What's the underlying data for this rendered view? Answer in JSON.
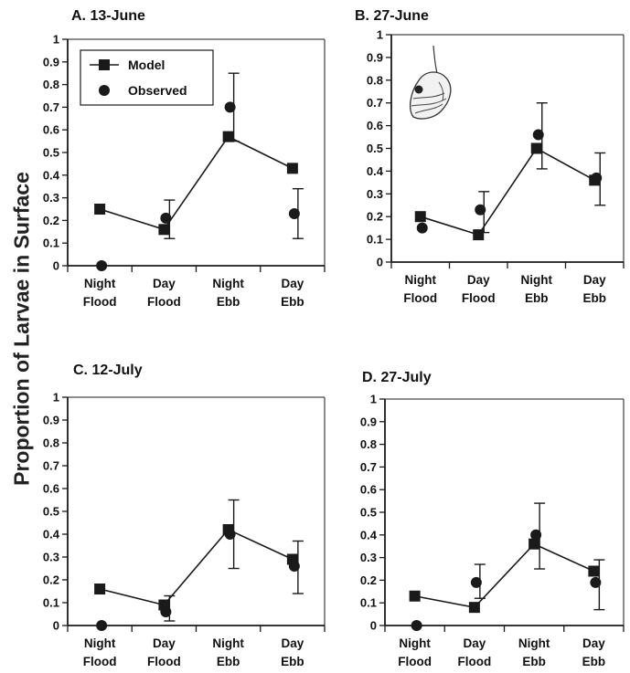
{
  "figure": {
    "ylabel": "Proportion of Larvae in Surface"
  },
  "chart_data": [
    {
      "type": "line",
      "title": "A. 13-June",
      "categories": [
        [
          "Night",
          "Flood"
        ],
        [
          "Day",
          "Flood"
        ],
        [
          "Night",
          "Ebb"
        ],
        [
          "Day",
          "Ebb"
        ]
      ],
      "ylim": [
        0,
        1
      ],
      "yticks": [
        "0",
        "0.1",
        "0.2",
        "0.3",
        "0.4",
        "0.5",
        "0.6",
        "0.7",
        "0.8",
        "0.9",
        "1"
      ],
      "legend": {
        "placement": "top-left",
        "entries": [
          "Model",
          "Observed"
        ]
      },
      "series": [
        {
          "name": "Model",
          "marker": "square",
          "line": true,
          "values": [
            0.25,
            0.16,
            0.57,
            0.43
          ]
        },
        {
          "name": "Observed",
          "marker": "circle",
          "line": false,
          "values": [
            0.0,
            0.21,
            0.7,
            0.23
          ],
          "error_low": [
            null,
            0.12,
            0.55,
            0.12
          ],
          "error_high": [
            null,
            0.29,
            0.85,
            0.34
          ]
        }
      ]
    },
    {
      "type": "line",
      "title": "B. 27-June",
      "categories": [
        [
          "Night",
          "Flood"
        ],
        [
          "Day",
          "Flood"
        ],
        [
          "Night",
          "Ebb"
        ],
        [
          "Day",
          "Ebb"
        ]
      ],
      "ylim": [
        0,
        1
      ],
      "yticks": [
        "0",
        "0.1",
        "0.2",
        "0.3",
        "0.4",
        "0.5",
        "0.6",
        "0.7",
        "0.8",
        "0.9",
        "1"
      ],
      "has_illustration": true,
      "series": [
        {
          "name": "Model",
          "marker": "square",
          "line": true,
          "values": [
            0.2,
            0.12,
            0.5,
            0.36
          ]
        },
        {
          "name": "Observed",
          "marker": "circle",
          "line": false,
          "values": [
            0.15,
            0.23,
            0.56,
            0.37
          ],
          "error_low": [
            null,
            0.13,
            0.41,
            0.25
          ],
          "error_high": [
            null,
            0.31,
            0.7,
            0.48
          ]
        }
      ]
    },
    {
      "type": "line",
      "title": "C. 12-July",
      "categories": [
        [
          "Night",
          "Flood"
        ],
        [
          "Day",
          "Flood"
        ],
        [
          "Night",
          "Ebb"
        ],
        [
          "Day",
          "Ebb"
        ]
      ],
      "ylim": [
        0,
        1
      ],
      "yticks": [
        "0",
        "0.1",
        "0.2",
        "0.3",
        "0.4",
        "0.5",
        "0.6",
        "0.7",
        "0.8",
        "0.9",
        "1"
      ],
      "series": [
        {
          "name": "Model",
          "marker": "square",
          "line": true,
          "values": [
            0.16,
            0.09,
            0.42,
            0.29
          ]
        },
        {
          "name": "Observed",
          "marker": "circle",
          "line": false,
          "values": [
            0.0,
            0.06,
            0.4,
            0.26
          ],
          "error_low": [
            null,
            0.02,
            0.25,
            0.14
          ],
          "error_high": [
            null,
            0.13,
            0.55,
            0.37
          ]
        }
      ]
    },
    {
      "type": "line",
      "title": "D. 27-July",
      "categories": [
        [
          "Night",
          "Flood"
        ],
        [
          "Day",
          "Flood"
        ],
        [
          "Night",
          "Ebb"
        ],
        [
          "Day",
          "Ebb"
        ]
      ],
      "ylim": [
        0,
        1
      ],
      "yticks": [
        "0",
        "0.1",
        "0.2",
        "0.3",
        "0.4",
        "0.5",
        "0.6",
        "0.7",
        "0.8",
        "0.9",
        "1"
      ],
      "series": [
        {
          "name": "Model",
          "marker": "square",
          "line": true,
          "values": [
            0.13,
            0.08,
            0.36,
            0.24
          ]
        },
        {
          "name": "Observed",
          "marker": "circle",
          "line": false,
          "values": [
            0.0,
            0.19,
            0.4,
            0.19
          ],
          "error_low": [
            null,
            0.12,
            0.25,
            0.07
          ],
          "error_high": [
            null,
            0.27,
            0.54,
            0.29
          ]
        }
      ]
    }
  ],
  "colors": {
    "marker": "#1a1a1a",
    "line": "#1a1a1a",
    "axis": "#1a1a1a"
  }
}
